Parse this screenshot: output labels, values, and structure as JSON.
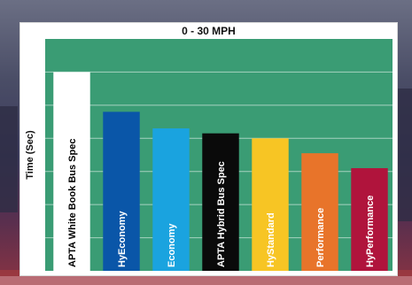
{
  "chart_data": {
    "type": "bar",
    "title": "0 - 30 MPH",
    "xlabel": "",
    "ylabel": "Time (Sec)",
    "ylim": [
      0,
      7
    ],
    "grid": true,
    "categories": [
      "APTA White Book Bus Spec",
      "HyEconomy",
      "Economy",
      "APTA Hybrid Bus Spec",
      "HyStandard",
      "Performance",
      "HyPerformance"
    ],
    "values": [
      6.0,
      4.8,
      4.3,
      4.15,
      4.0,
      3.55,
      3.1
    ],
    "colors": [
      "#ffffff",
      "#0a56a8",
      "#1aa3df",
      "#0a0a0a",
      "#f7c524",
      "#e8742a",
      "#b0143c"
    ],
    "label_colors": [
      "#000000",
      "#ffffff",
      "#ffffff",
      "#ffffff",
      "#ffffff",
      "#ffffff",
      "#ffffff"
    ],
    "plot_background": "#3a9c74"
  }
}
